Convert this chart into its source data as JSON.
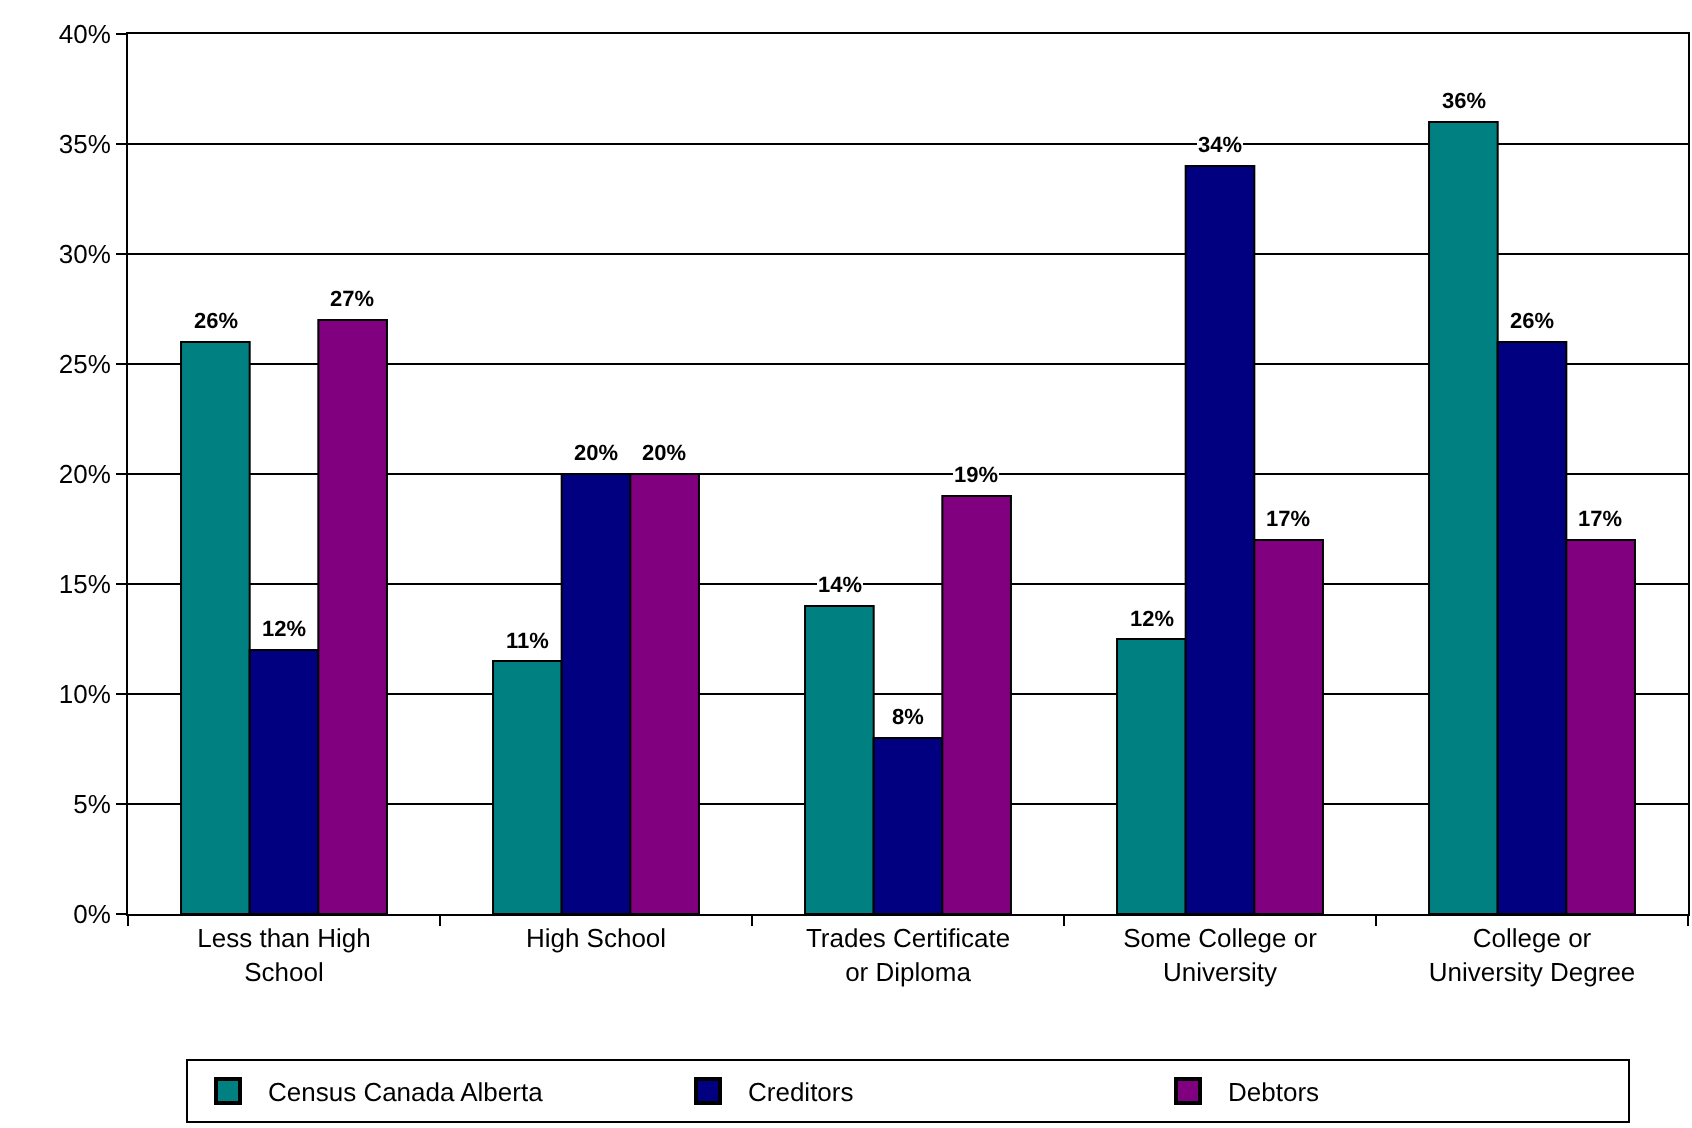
{
  "chart_data": {
    "type": "bar",
    "categories": [
      "Less than High School",
      "High School",
      "Trades Certificate or Diploma",
      "Some College or University",
      "College or University Degree"
    ],
    "series": [
      {
        "name": "Census Canada Alberta",
        "color": "#008080",
        "values": [
          26,
          11.5,
          14,
          12.5,
          36
        ],
        "value_labels": [
          "26%",
          "11%",
          "14%",
          "12%",
          "36%"
        ]
      },
      {
        "name": "Creditors",
        "color": "#000080",
        "values": [
          12,
          20,
          8,
          34,
          26
        ],
        "value_labels": [
          "12%",
          "20%",
          "8%",
          "34%",
          "26%"
        ]
      },
      {
        "name": "Debtors",
        "color": "#800080",
        "values": [
          27,
          20,
          19,
          17,
          17
        ],
        "value_labels": [
          "27%",
          "20%",
          "19%",
          "17%",
          "17%"
        ]
      }
    ],
    "ylim": [
      0,
      40
    ],
    "yticks": [
      {
        "value": 0,
        "label": "0%"
      },
      {
        "value": 5,
        "label": "5%"
      },
      {
        "value": 10,
        "label": "10%"
      },
      {
        "value": 15,
        "label": "15%"
      },
      {
        "value": 20,
        "label": "20%"
      },
      {
        "value": 25,
        "label": "25%"
      },
      {
        "value": 30,
        "label": "30%"
      },
      {
        "value": 35,
        "label": "35%"
      },
      {
        "value": 40,
        "label": "40%"
      }
    ],
    "grid": "y",
    "legend": "bottom"
  }
}
